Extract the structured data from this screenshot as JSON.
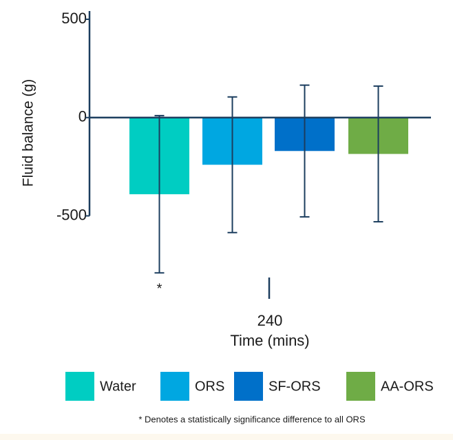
{
  "chart_data": {
    "type": "bar",
    "y_label": "Fluid balance (g)",
    "x_label": "Time (mins)",
    "categories": [
      "240"
    ],
    "series": [
      {
        "name": "Water",
        "color": "#00cdc2",
        "values": [
          -390
        ],
        "errors": [
          400
        ]
      },
      {
        "name": "ORS",
        "color": "#00a7e1",
        "values": [
          -240
        ],
        "errors": [
          345
        ]
      },
      {
        "name": "SF-ORS",
        "color": "#0070c9",
        "values": [
          -170
        ],
        "errors": [
          335
        ]
      },
      {
        "name": "AA-ORS",
        "color": "#6fac46",
        "values": [
          -185
        ],
        "errors": [
          345
        ]
      }
    ],
    "annotation": "*",
    "footnote": "* Denotes a statistically significance difference to all ORS",
    "ylim": [
      -500,
      500
    ],
    "yticks": [
      500,
      0,
      -500
    ]
  }
}
